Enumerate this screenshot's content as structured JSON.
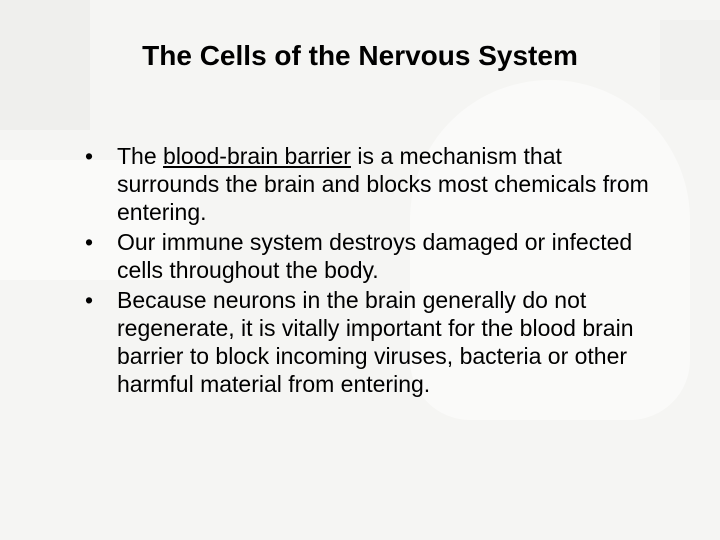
{
  "slide": {
    "title": "The Cells of the Nervous System",
    "title_fontsize": 28,
    "title_fontweight": "bold",
    "title_color": "#000000",
    "background_color": "#f5f5f3",
    "bullets": [
      {
        "prefix": "The ",
        "underlined": "blood-brain barrier",
        "rest": " is a mechanism that surrounds the brain and blocks most chemicals from entering."
      },
      {
        "prefix": "",
        "underlined": "",
        "rest": "Our immune system destroys damaged or infected cells throughout the body."
      },
      {
        "prefix": "",
        "underlined": "",
        "rest": "Because neurons in the brain generally do not regenerate, it is vitally important for the blood brain barrier to block incoming viruses, bacteria or other harmful material from entering."
      }
    ],
    "body_fontsize": 23,
    "body_color": "#000000",
    "bullet_marker": "•",
    "bullet_marker_color": "#000000",
    "watermark_shapes": {
      "color_light": "#ffffff",
      "color_gray": "#e6e6e4",
      "opacity": 0.5
    }
  }
}
